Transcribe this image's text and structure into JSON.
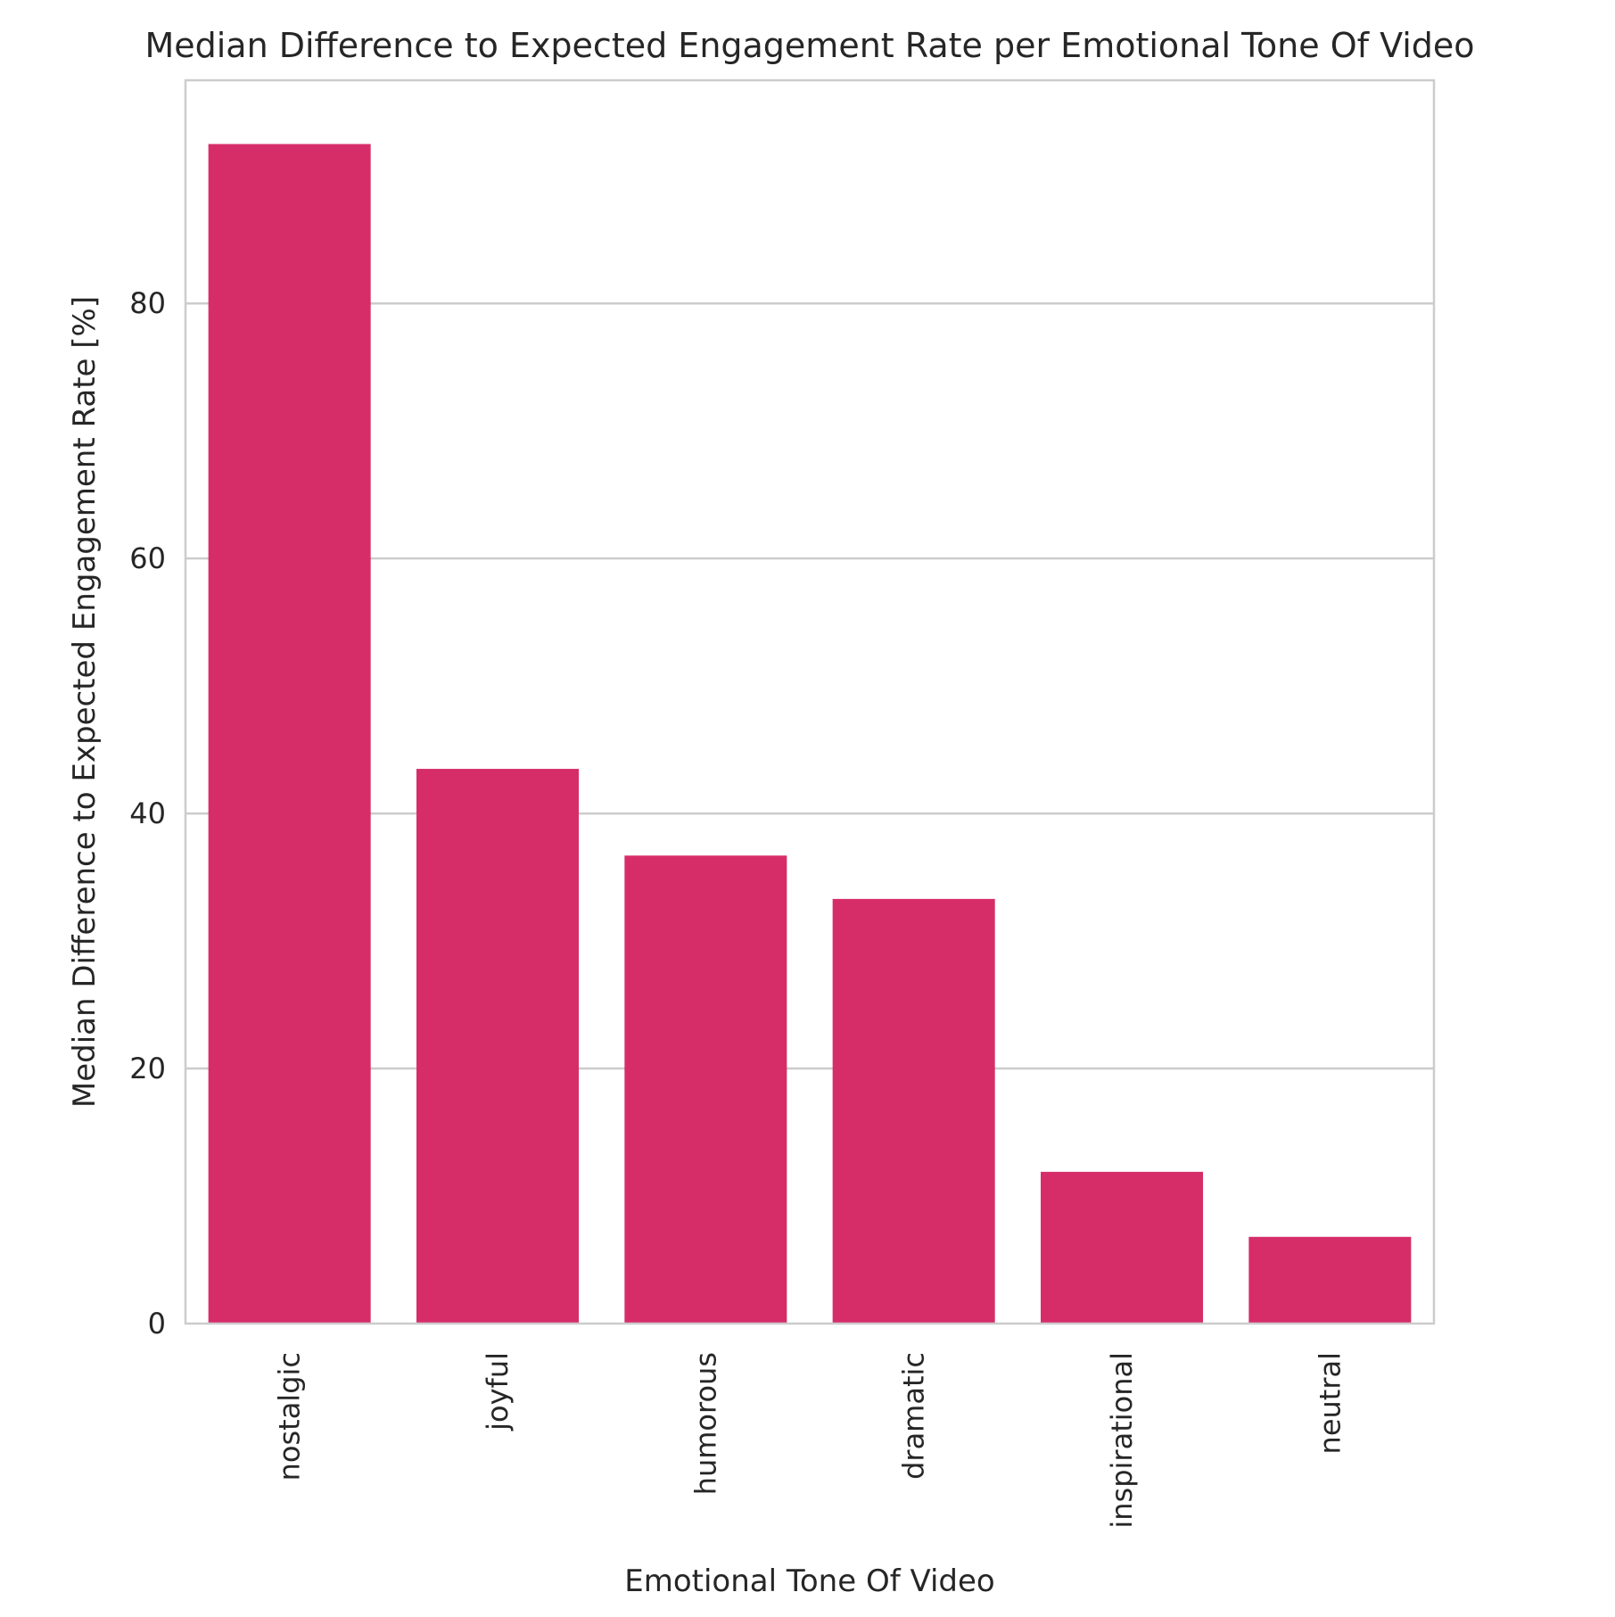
{
  "chart_data": {
    "type": "bar",
    "title": "Median Difference to Expected Engagement Rate per Emotional Tone Of Video",
    "xlabel": "Emotional Tone Of Video",
    "ylabel": "Median Difference to Expected Engagement Rate [%]",
    "categories": [
      "nostalgic",
      "joyful",
      "humorous",
      "dramatic",
      "inspirational",
      "neutral"
    ],
    "values": [
      92.5,
      43.5,
      36.7,
      33.3,
      11.9,
      6.8
    ],
    "ylim": [
      0,
      97.5
    ],
    "yticks": [
      "0",
      "20",
      "40",
      "60",
      "80"
    ],
    "grid": "horizontal",
    "bar_color": "#d62d69",
    "grid_color": "#cccccc",
    "text_color": "#262626"
  }
}
